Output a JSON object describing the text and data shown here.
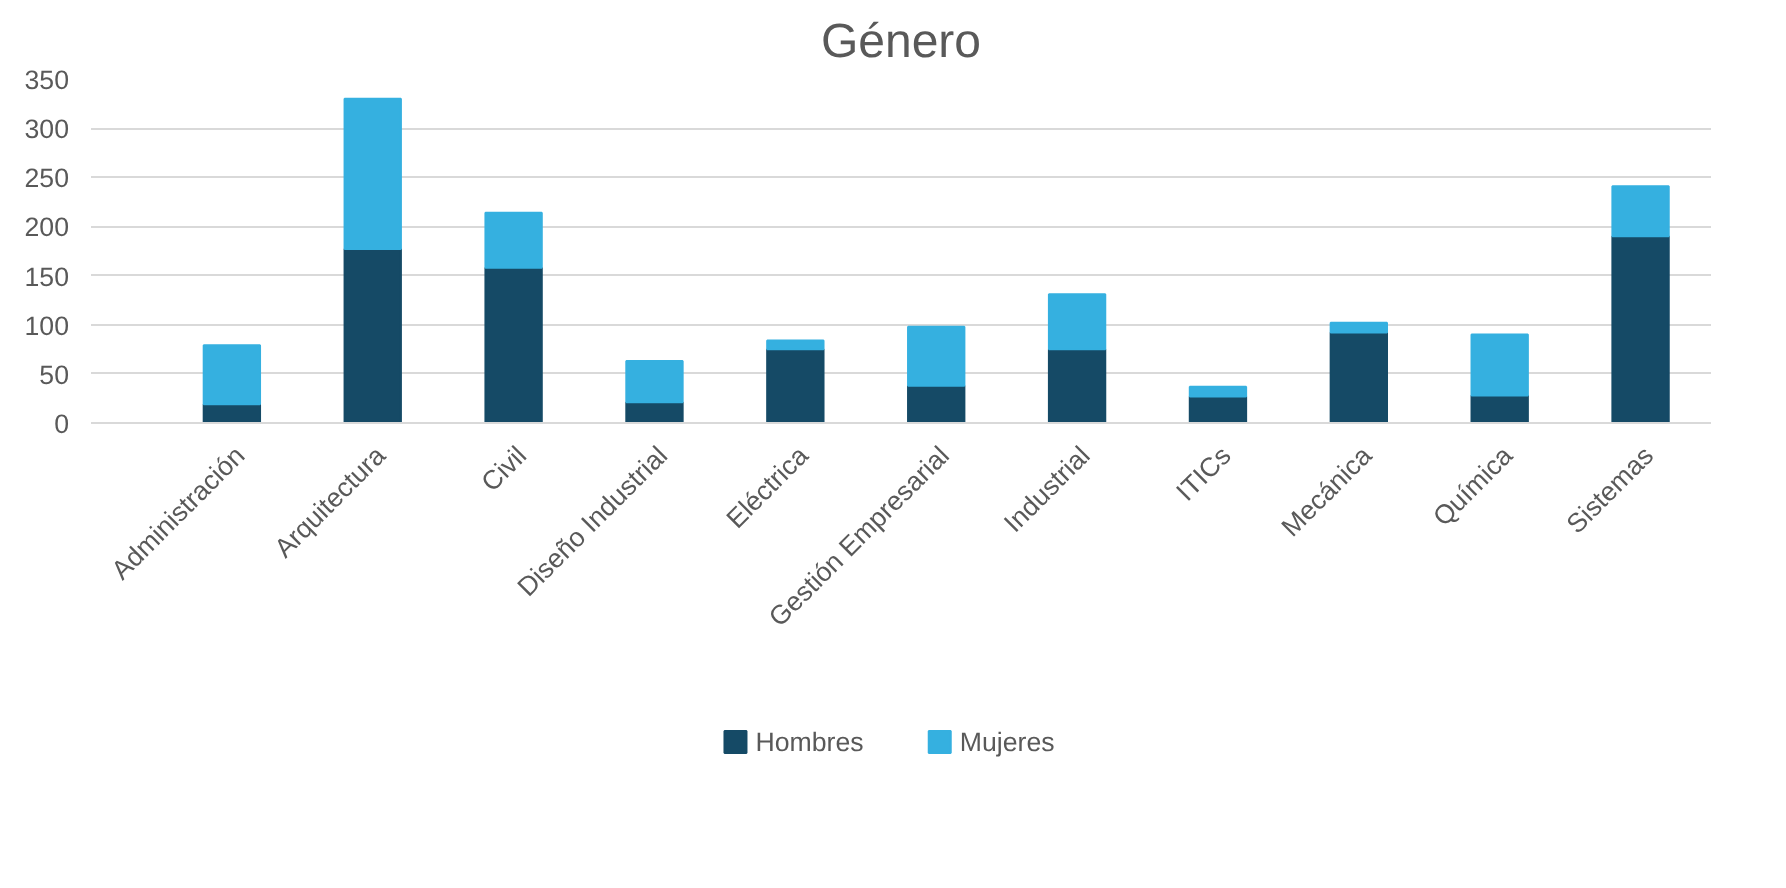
{
  "chart_data": {
    "type": "bar",
    "title": "Género",
    "stacked": true,
    "categories": [
      "Administración",
      "Arquitectura",
      "Civil",
      "Diseño Industrial",
      "Eléctrica",
      "Gestión Empresarial",
      "Industrial",
      "ITICs",
      "Mecánica",
      "Química",
      "Sistemas"
    ],
    "series": [
      {
        "name": "Hombres",
        "color": "#154a66",
        "values": [
          19,
          177,
          158,
          21,
          75,
          38,
          75,
          27,
          92,
          28,
          190
        ]
      },
      {
        "name": "Mujeres",
        "color": "#35b0e0",
        "values": [
          60,
          153,
          56,
          42,
          9,
          60,
          56,
          10,
          10,
          62,
          51
        ]
      }
    ],
    "ylim": [
      0,
      350
    ],
    "yticks": [
      0,
      50,
      100,
      150,
      200,
      250,
      300,
      350
    ],
    "grid": "y",
    "legend": "bottom"
  }
}
